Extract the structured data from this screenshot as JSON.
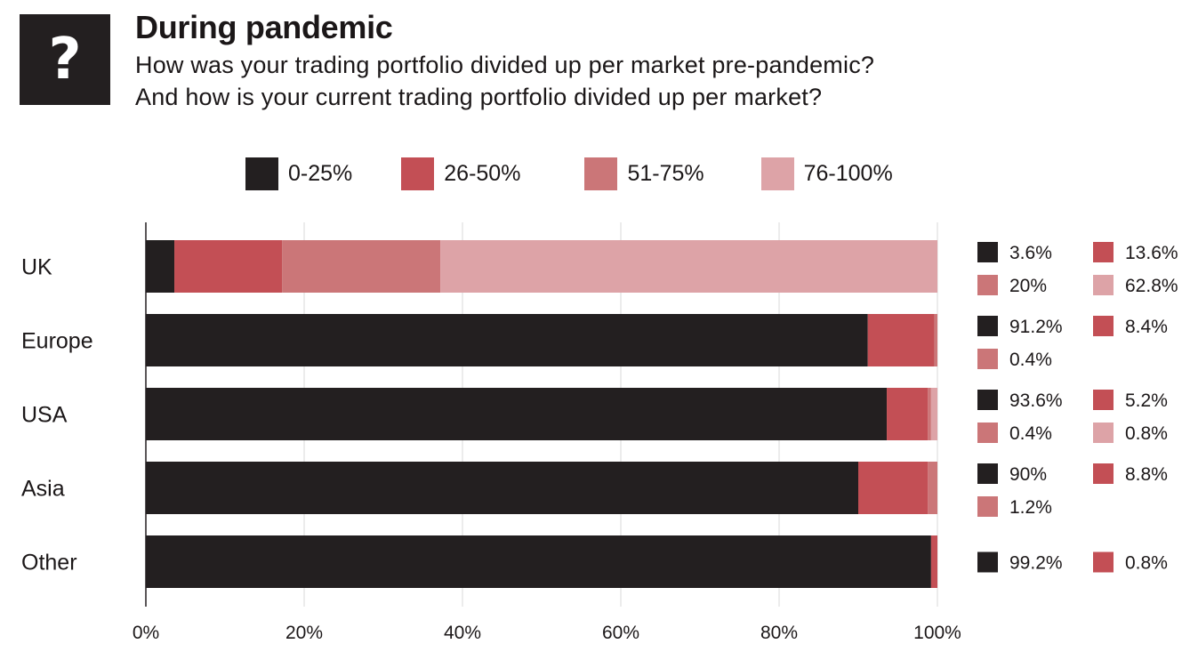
{
  "header": {
    "icon": "question-mark-icon",
    "icon_glyph": "?",
    "title": "During pandemic",
    "subtitle_line1": "How was your trading portfolio divided up per market pre-pandemic?",
    "subtitle_line2": "And how is your current trading portfolio divided up per market?"
  },
  "colors": {
    "0-25%": "#231f20",
    "26-50%": "#c34f55",
    "51-75%": "#cb7678",
    "76-100%": "#dda3a7"
  },
  "chart_data": {
    "type": "bar",
    "orientation": "horizontal",
    "stacked": true,
    "categories": [
      "UK",
      "Europe",
      "USA",
      "Asia",
      "Other"
    ],
    "series": [
      {
        "name": "0-25%",
        "values": [
          3.6,
          91.2,
          93.6,
          90,
          99.2
        ]
      },
      {
        "name": "26-50%",
        "values": [
          13.6,
          8.4,
          5.2,
          8.8,
          0.8
        ]
      },
      {
        "name": "51-75%",
        "values": [
          20,
          0.4,
          0.4,
          1.2,
          0
        ]
      },
      {
        "name": "76-100%",
        "values": [
          62.8,
          0,
          0.8,
          0,
          0
        ]
      }
    ],
    "data_labels": [
      [
        {
          "series": "0-25%",
          "text": "3.6%"
        },
        {
          "series": "26-50%",
          "text": "13.6%"
        },
        {
          "series": "51-75%",
          "text": "20%"
        },
        {
          "series": "76-100%",
          "text": "62.8%"
        }
      ],
      [
        {
          "series": "0-25%",
          "text": "91.2%"
        },
        {
          "series": "26-50%",
          "text": "8.4%"
        },
        {
          "series": "51-75%",
          "text": "0.4%"
        }
      ],
      [
        {
          "series": "0-25%",
          "text": "93.6%"
        },
        {
          "series": "26-50%",
          "text": "5.2%"
        },
        {
          "series": "51-75%",
          "text": "0.4%"
        },
        {
          "series": "76-100%",
          "text": "0.8%"
        }
      ],
      [
        {
          "series": "0-25%",
          "text": "90%"
        },
        {
          "series": "26-50%",
          "text": "8.8%"
        },
        {
          "series": "51-75%",
          "text": "1.2%"
        }
      ],
      [
        {
          "series": "0-25%",
          "text": "99.2%"
        },
        {
          "series": "26-50%",
          "text": "0.8%"
        }
      ]
    ],
    "x_ticks": [
      "0%",
      "20%",
      "40%",
      "60%",
      "80%",
      "100%"
    ],
    "xlim": [
      0,
      100
    ],
    "grid": true,
    "legend_position": "top-center",
    "title": "",
    "xlabel": "",
    "ylabel": ""
  }
}
